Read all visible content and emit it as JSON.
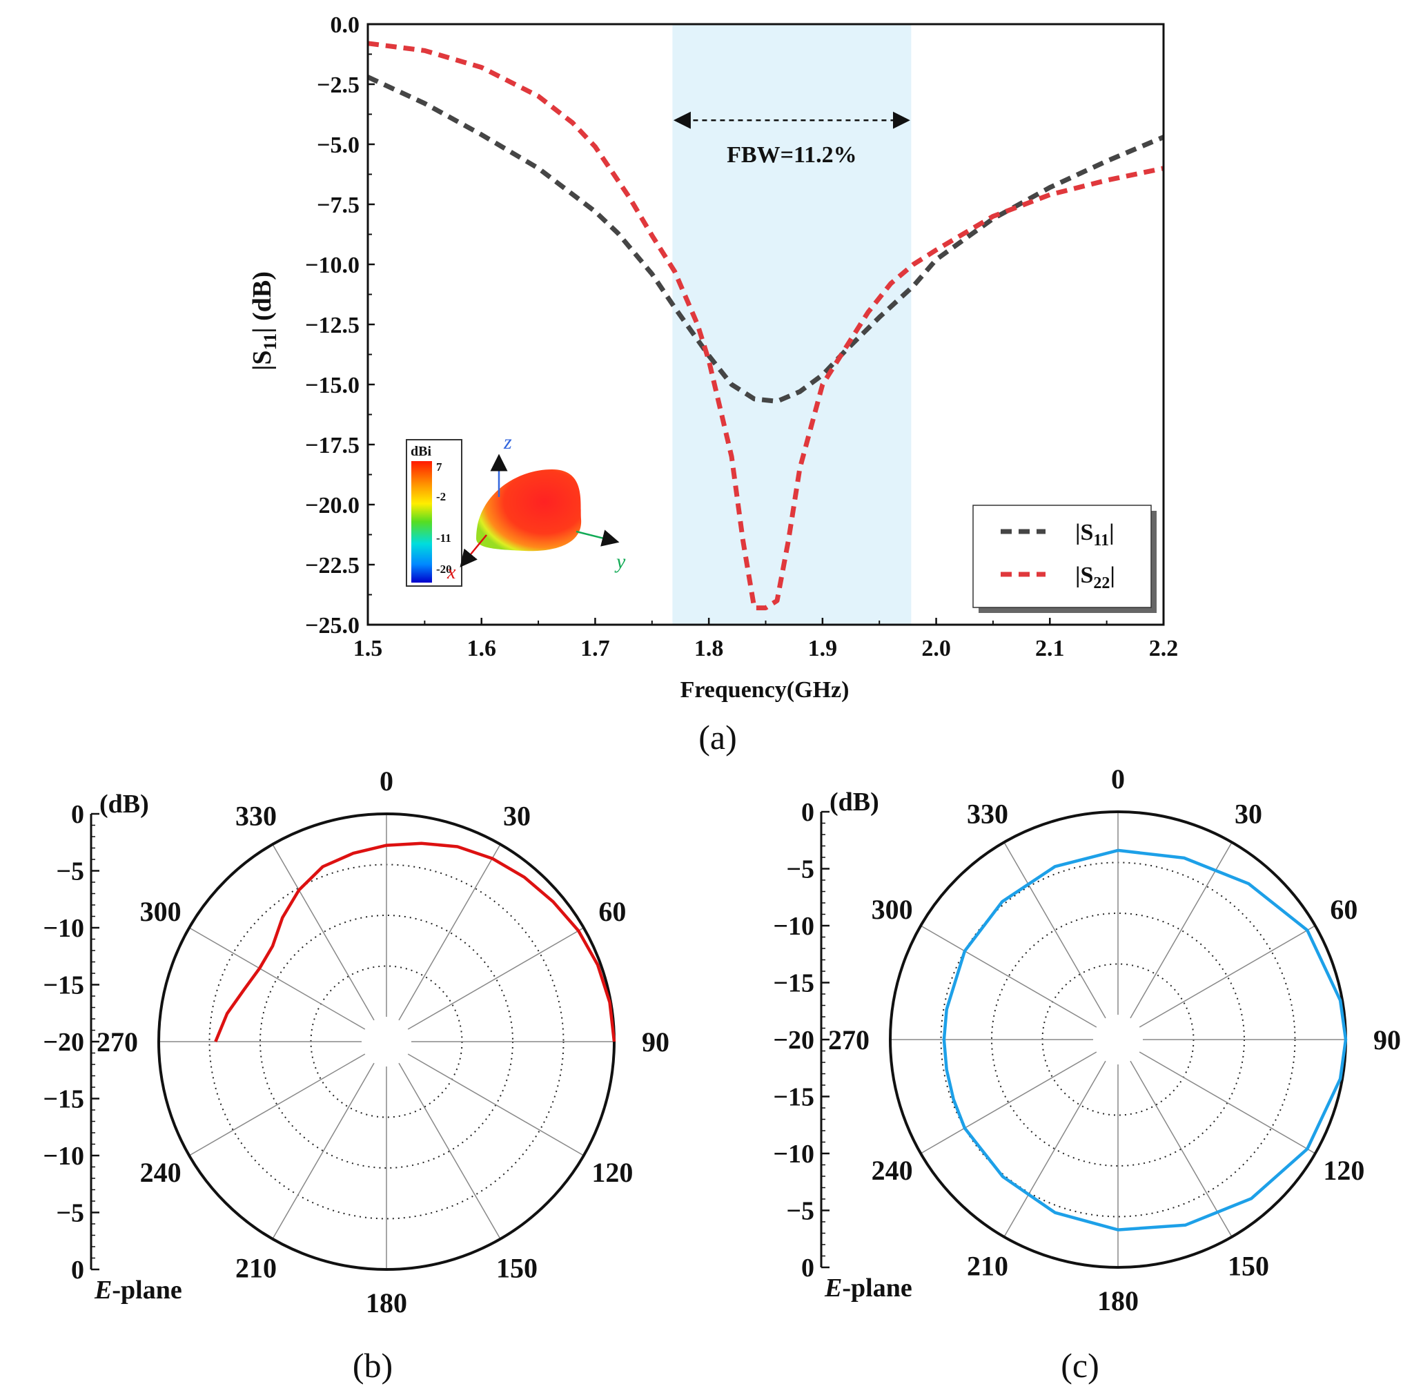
{
  "colors": {
    "s11": "#454545",
    "s22": "#e0383c",
    "band": "#e2f3fb",
    "eplane_b": "#dd1111",
    "eplane_c": "#1da0e8"
  },
  "chart_data": [
    {
      "panel": "(a)",
      "type": "line",
      "xlabel": "Frequency(GHz)",
      "ylabel": "|S11| (dB)",
      "xlim": [
        1.5,
        2.2
      ],
      "ylim": [
        -25.0,
        0.0
      ],
      "xticks": [
        "1.5",
        "1.6",
        "1.7",
        "1.8",
        "1.9",
        "2.0",
        "2.1",
        "2.2"
      ],
      "yticks": [
        "0.0",
        "-2.5",
        "-5.0",
        "-7.5",
        "-10.0",
        "-12.5",
        "-15.0",
        "-17.5",
        "-20.0",
        "-22.5",
        "-25.0"
      ],
      "band": {
        "x_start": 1.768,
        "x_end": 1.978,
        "annotation": "FBW=11.2%"
      },
      "series": [
        {
          "name": "|S11|",
          "style": "dashed",
          "x": [
            1.5,
            1.55,
            1.6,
            1.65,
            1.7,
            1.72,
            1.75,
            1.77,
            1.8,
            1.82,
            1.84,
            1.86,
            1.88,
            1.9,
            1.92,
            1.95,
            1.98,
            2.0,
            2.05,
            2.1,
            2.15,
            2.2
          ],
          "y": [
            -2.2,
            -3.3,
            -4.6,
            -6.0,
            -7.8,
            -8.7,
            -10.4,
            -11.8,
            -13.8,
            -15.0,
            -15.6,
            -15.7,
            -15.3,
            -14.6,
            -13.6,
            -12.2,
            -10.9,
            -9.8,
            -8.1,
            -6.8,
            -5.7,
            -4.7
          ]
        },
        {
          "name": "|S22|",
          "style": "dashed",
          "x": [
            1.5,
            1.55,
            1.6,
            1.65,
            1.68,
            1.7,
            1.73,
            1.75,
            1.77,
            1.79,
            1.8,
            1.82,
            1.83,
            1.84,
            1.85,
            1.86,
            1.87,
            1.88,
            1.9,
            1.92,
            1.94,
            1.96,
            1.98,
            2.0,
            2.05,
            2.1,
            2.15,
            2.2
          ],
          "y": [
            -0.8,
            -1.1,
            -1.8,
            -3.0,
            -4.1,
            -5.1,
            -7.2,
            -8.8,
            -10.3,
            -12.5,
            -14.0,
            -18.0,
            -21.5,
            -24.3,
            -24.3,
            -24.0,
            -21.5,
            -18.5,
            -15.0,
            -13.5,
            -12.0,
            -10.8,
            -10.0,
            -9.4,
            -8.0,
            -7.1,
            -6.5,
            -6.0
          ]
        }
      ],
      "legend": {
        "position": "bottom-right",
        "entries": [
          "|S11|",
          "|S22|"
        ]
      },
      "inset": {
        "colorbar_title": "dBi",
        "colorbar_ticks": [
          "7",
          "-2",
          "-11",
          "-20"
        ],
        "axes": [
          "z",
          "y",
          "x"
        ]
      }
    },
    {
      "panel": "(b)",
      "type": "polar",
      "plane_label": "E-plane",
      "radial_unit": "(dB)",
      "angle_labels": [
        "0",
        "30",
        "60",
        "90",
        "120",
        "150",
        "180",
        "210",
        "240",
        "270",
        "300",
        "330"
      ],
      "radial_ticks_upper": [
        "0",
        "−5",
        "−10",
        "−15",
        "−20"
      ],
      "radial_ticks_lower": [
        "−15",
        "−10",
        "−5",
        "0"
      ],
      "rlim_db": [
        -20,
        0
      ],
      "series": [
        {
          "name": "E-plane",
          "angle_deg": [
            -90,
            -80,
            -70,
            -60,
            -50,
            -40,
            -30,
            -20,
            -10,
            0,
            10,
            20,
            30,
            40,
            50,
            60,
            70,
            80,
            90
          ],
          "gain_db": [
            -5.6,
            -6.5,
            -7.5,
            -8.0,
            -7.8,
            -6.5,
            -5.2,
            -4.1,
            -3.6,
            -3.1,
            -2.6,
            -2.0,
            -1.6,
            -1.3,
            -1.0,
            -0.6,
            -0.3,
            -0.1,
            0.0
          ]
        }
      ]
    },
    {
      "panel": "(c)",
      "type": "polar",
      "plane_label": "E-plane",
      "radial_unit": "(dB)",
      "angle_labels": [
        "0",
        "30",
        "60",
        "90",
        "120",
        "150",
        "180",
        "210",
        "240",
        "270",
        "300",
        "330"
      ],
      "radial_ticks_upper": [
        "0",
        "−5",
        "−10",
        "−15",
        "−20"
      ],
      "radial_ticks_lower": [
        "−15",
        "−10",
        "−5",
        "0"
      ],
      "rlim_db": [
        -20,
        0
      ],
      "series": [
        {
          "name": "E-plane",
          "angle_deg": [
            0,
            20,
            40,
            60,
            80,
            90,
            100,
            120,
            140,
            160,
            180,
            200,
            220,
            240,
            250,
            260,
            270,
            280,
            300,
            320,
            340,
            360
          ],
          "gain_db": [
            -3.8,
            -3.4,
            -2.4,
            -0.9,
            -0.2,
            0.0,
            -0.2,
            -0.9,
            -2.0,
            -3.0,
            -3.7,
            -4.3,
            -4.8,
            -5.0,
            -5.2,
            -5.3,
            -5.3,
            -5.3,
            -5.0,
            -4.7,
            -4.3,
            -3.8
          ]
        }
      ]
    }
  ],
  "panel_labels": [
    "(a)",
    "(b)",
    "(c)"
  ]
}
